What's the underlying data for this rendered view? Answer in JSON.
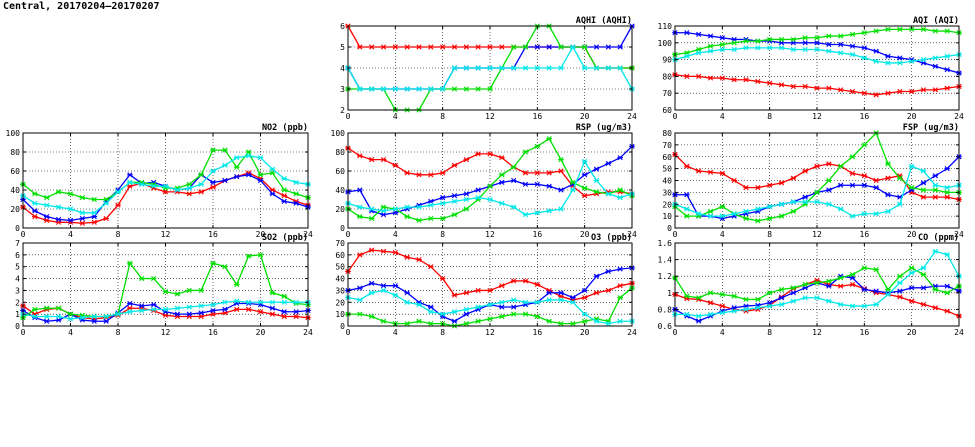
{
  "page": {
    "title": "Central, 20170204–20170207"
  },
  "chart_data": [
    {
      "id": "aqhi",
      "type": "line",
      "title": "AQHI (AQHI)",
      "xlim": [
        0,
        24
      ],
      "ylim": [
        2,
        6
      ],
      "xticks": [
        0,
        4,
        8,
        12,
        16,
        20,
        24
      ],
      "yticks": [
        2,
        3,
        4,
        5,
        6
      ],
      "grid": true,
      "series": [
        {
          "color": "#ff0000",
          "values": [
            6,
            5,
            5,
            5,
            5,
            5,
            5,
            5,
            5,
            5,
            5,
            5,
            5,
            5,
            5,
            5,
            5,
            5,
            5,
            5,
            5,
            4,
            4,
            4,
            4
          ]
        },
        {
          "color": "#0000ff",
          "values": [
            4,
            3,
            3,
            3,
            3,
            3,
            3,
            3,
            3,
            4,
            4,
            4,
            4,
            4,
            4,
            5,
            5,
            5,
            5,
            5,
            5,
            5,
            5,
            5,
            6
          ]
        },
        {
          "color": "#00e000",
          "values": [
            3,
            3,
            3,
            3,
            2,
            2,
            2,
            3,
            3,
            3,
            3,
            3,
            3,
            4,
            5,
            5,
            6,
            6,
            5,
            5,
            5,
            4,
            4,
            4,
            4
          ]
        },
        {
          "color": "#00e8e8",
          "values": [
            4,
            3,
            3,
            3,
            3,
            3,
            3,
            3,
            3,
            4,
            4,
            4,
            4,
            4,
            4,
            4,
            4,
            4,
            4,
            5,
            4,
            4,
            4,
            4,
            3
          ]
        }
      ]
    },
    {
      "id": "aqi",
      "type": "line",
      "title": "AQI (AQI)",
      "xlim": [
        0,
        24
      ],
      "ylim": [
        60,
        110
      ],
      "xticks": [
        0,
        4,
        8,
        12,
        16,
        20,
        24
      ],
      "yticks": [
        60,
        70,
        80,
        90,
        100,
        110
      ],
      "grid": true,
      "series": [
        {
          "color": "#ff0000",
          "values": [
            81,
            80,
            80,
            79,
            79,
            78,
            78,
            77,
            76,
            75,
            74,
            74,
            73,
            73,
            72,
            71,
            70,
            69,
            70,
            71,
            71,
            72,
            72,
            73,
            74
          ]
        },
        {
          "color": "#0000ff",
          "values": [
            106,
            106,
            105,
            104,
            103,
            102,
            102,
            101,
            101,
            100,
            100,
            100,
            100,
            99,
            99,
            98,
            97,
            95,
            92,
            91,
            90,
            88,
            86,
            84,
            82
          ]
        },
        {
          "color": "#00e000",
          "values": [
            93,
            94,
            96,
            98,
            99,
            100,
            101,
            101,
            102,
            102,
            102,
            103,
            103,
            104,
            104,
            105,
            106,
            107,
            108,
            108,
            108,
            108,
            107,
            107,
            106
          ]
        },
        {
          "color": "#00e8e8",
          "values": [
            90,
            92,
            94,
            95,
            96,
            96,
            97,
            97,
            97,
            97,
            96,
            96,
            96,
            95,
            94,
            93,
            91,
            89,
            88,
            88,
            89,
            90,
            91,
            92,
            93
          ]
        }
      ]
    },
    {
      "id": "no2",
      "type": "line",
      "title": "NO2 (ppb)",
      "xlim": [
        0,
        24
      ],
      "ylim": [
        0,
        100
      ],
      "xticks": [
        0,
        4,
        8,
        12,
        16,
        20,
        24
      ],
      "yticks": [
        0,
        20,
        40,
        60,
        80,
        100
      ],
      "grid": true,
      "series": [
        {
          "color": "#ff0000",
          "values": [
            22,
            12,
            8,
            6,
            6,
            5,
            6,
            10,
            24,
            44,
            47,
            42,
            38,
            38,
            36,
            38,
            43,
            50,
            54,
            58,
            52,
            40,
            34,
            28,
            24
          ]
        },
        {
          "color": "#0000ff",
          "values": [
            30,
            18,
            12,
            9,
            8,
            10,
            12,
            28,
            40,
            56,
            47,
            48,
            44,
            40,
            42,
            56,
            48,
            50,
            54,
            56,
            50,
            36,
            28,
            26,
            22
          ]
        },
        {
          "color": "#00e000",
          "values": [
            46,
            36,
            32,
            38,
            36,
            32,
            30,
            30,
            38,
            48,
            48,
            46,
            42,
            42,
            46,
            56,
            82,
            82,
            64,
            80,
            56,
            58,
            40,
            36,
            32
          ]
        },
        {
          "color": "#00e8e8",
          "values": [
            34,
            26,
            24,
            22,
            20,
            16,
            16,
            26,
            38,
            48,
            46,
            44,
            44,
            40,
            42,
            46,
            60,
            66,
            74,
            76,
            74,
            62,
            52,
            48,
            46
          ]
        }
      ]
    },
    {
      "id": "rsp",
      "type": "line",
      "title": "RSP (ug/m3)",
      "xlim": [
        0,
        24
      ],
      "ylim": [
        0,
        100
      ],
      "xticks": [
        0,
        4,
        8,
        12,
        16,
        20,
        24
      ],
      "yticks": [
        0,
        20,
        40,
        60,
        80,
        100
      ],
      "grid": true,
      "series": [
        {
          "color": "#ff0000",
          "values": [
            84,
            76,
            72,
            72,
            66,
            58,
            56,
            56,
            58,
            66,
            72,
            78,
            78,
            74,
            64,
            58,
            58,
            58,
            60,
            44,
            34,
            36,
            38,
            38,
            36
          ]
        },
        {
          "color": "#0000ff",
          "values": [
            38,
            40,
            18,
            14,
            16,
            20,
            24,
            28,
            32,
            34,
            36,
            40,
            44,
            48,
            50,
            46,
            46,
            44,
            40,
            46,
            56,
            62,
            68,
            74,
            86
          ]
        },
        {
          "color": "#00e000",
          "values": [
            20,
            12,
            10,
            22,
            20,
            12,
            8,
            10,
            10,
            14,
            20,
            30,
            44,
            56,
            64,
            80,
            86,
            94,
            72,
            48,
            42,
            38,
            36,
            40,
            34
          ]
        },
        {
          "color": "#00e8e8",
          "values": [
            26,
            22,
            20,
            18,
            20,
            22,
            22,
            24,
            26,
            28,
            30,
            32,
            30,
            26,
            22,
            14,
            16,
            18,
            20,
            40,
            70,
            50,
            36,
            32,
            36
          ]
        }
      ]
    },
    {
      "id": "fsp",
      "type": "line",
      "title": "FSP (ug/m3)",
      "xlim": [
        0,
        24
      ],
      "ylim": [
        0,
        80
      ],
      "xticks": [
        0,
        4,
        8,
        12,
        16,
        20,
        24
      ],
      "yticks": [
        0,
        10,
        20,
        30,
        40,
        50,
        60,
        70,
        80
      ],
      "grid": true,
      "series": [
        {
          "color": "#ff0000",
          "values": [
            62,
            52,
            48,
            47,
            46,
            40,
            34,
            34,
            36,
            38,
            42,
            48,
            52,
            54,
            52,
            46,
            44,
            40,
            42,
            44,
            30,
            26,
            26,
            26,
            24
          ]
        },
        {
          "color": "#0000ff",
          "values": [
            28,
            28,
            10,
            10,
            8,
            10,
            12,
            14,
            18,
            20,
            22,
            26,
            30,
            32,
            36,
            36,
            36,
            34,
            28,
            26,
            32,
            38,
            44,
            50,
            60
          ]
        },
        {
          "color": "#00e000",
          "values": [
            18,
            10,
            10,
            14,
            18,
            12,
            8,
            6,
            8,
            10,
            14,
            20,
            30,
            40,
            52,
            60,
            70,
            80,
            54,
            42,
            34,
            32,
            32,
            30,
            30
          ]
        },
        {
          "color": "#00e8e8",
          "values": [
            20,
            16,
            12,
            10,
            10,
            12,
            14,
            16,
            18,
            20,
            22,
            22,
            22,
            20,
            16,
            10,
            12,
            12,
            14,
            20,
            52,
            48,
            36,
            34,
            36
          ]
        }
      ]
    },
    {
      "id": "so2",
      "type": "line",
      "title": "SO2 (ppb)",
      "xlim": [
        0,
        24
      ],
      "ylim": [
        0,
        7
      ],
      "xticks": [
        0,
        4,
        8,
        12,
        16,
        20,
        24
      ],
      "yticks": [
        0,
        1,
        2,
        3,
        4,
        5,
        6,
        7
      ],
      "grid": true,
      "series": [
        {
          "color": "#ff0000",
          "values": [
            1.7,
            1.0,
            1.4,
            1.5,
            1.0,
            0.7,
            0.6,
            0.7,
            0.9,
            1.5,
            1.5,
            1.3,
            0.9,
            0.8,
            0.8,
            0.8,
            1.0,
            1.1,
            1.4,
            1.4,
            1.2,
            1.0,
            0.8,
            0.8,
            0.7
          ]
        },
        {
          "color": "#0000ff",
          "values": [
            1.3,
            0.7,
            0.4,
            0.5,
            1.0,
            0.5,
            0.4,
            0.4,
            1.1,
            1.9,
            1.7,
            1.8,
            1.2,
            1.0,
            1.0,
            1.1,
            1.3,
            1.4,
            1.9,
            1.9,
            1.8,
            1.5,
            1.2,
            1.2,
            1.3
          ]
        },
        {
          "color": "#00e000",
          "values": [
            0.7,
            1.4,
            1.5,
            1.5,
            1.0,
            0.9,
            0.8,
            0.8,
            1.0,
            5.3,
            4.0,
            4.0,
            2.9,
            2.7,
            3.0,
            3.0,
            5.3,
            5.0,
            3.5,
            5.9,
            6.0,
            2.8,
            2.5,
            1.9,
            1.8
          ]
        },
        {
          "color": "#00e8e8",
          "values": [
            1.0,
            0.8,
            0.8,
            0.8,
            0.6,
            0.7,
            0.8,
            0.8,
            1.0,
            1.2,
            1.3,
            1.4,
            1.4,
            1.5,
            1.6,
            1.7,
            1.8,
            2.0,
            2.1,
            2.0,
            2.0,
            2.0,
            2.0,
            2.0,
            2.0
          ]
        }
      ]
    },
    {
      "id": "o3",
      "type": "line",
      "title": "O3 (ppb)",
      "xlim": [
        0,
        24
      ],
      "ylim": [
        0,
        70
      ],
      "xticks": [
        0,
        4,
        8,
        12,
        16,
        20,
        24
      ],
      "yticks": [
        0,
        10,
        20,
        30,
        40,
        50,
        60,
        70
      ],
      "grid": true,
      "series": [
        {
          "color": "#ff0000",
          "values": [
            46,
            60,
            64,
            63,
            62,
            58,
            56,
            50,
            40,
            26,
            28,
            30,
            30,
            34,
            38,
            38,
            35,
            30,
            25,
            22,
            24,
            28,
            30,
            34,
            36
          ]
        },
        {
          "color": "#0000ff",
          "values": [
            30,
            32,
            36,
            34,
            34,
            28,
            20,
            16,
            8,
            4,
            10,
            14,
            18,
            16,
            16,
            18,
            20,
            28,
            28,
            24,
            30,
            42,
            46,
            48,
            49
          ]
        },
        {
          "color": "#00e000",
          "values": [
            10,
            10,
            8,
            4,
            2,
            2,
            4,
            2,
            2,
            0,
            2,
            4,
            6,
            8,
            10,
            10,
            8,
            4,
            2,
            2,
            4,
            6,
            4,
            24,
            32
          ]
        },
        {
          "color": "#00e8e8",
          "values": [
            24,
            22,
            28,
            30,
            26,
            20,
            18,
            12,
            10,
            12,
            14,
            16,
            18,
            20,
            22,
            20,
            20,
            22,
            22,
            20,
            10,
            4,
            2,
            4,
            4
          ]
        }
      ]
    },
    {
      "id": "co",
      "type": "line",
      "title": "CO (ppm)",
      "xlim": [
        0,
        24
      ],
      "ylim": [
        0.6,
        1.6
      ],
      "xticks": [
        0,
        4,
        8,
        12,
        16,
        20,
        24
      ],
      "yticks": [
        0.6,
        0.8,
        1.0,
        1.2,
        1.4,
        1.6
      ],
      "grid": true,
      "series": [
        {
          "color": "#ff0000",
          "values": [
            0.98,
            0.93,
            0.92,
            0.88,
            0.84,
            0.8,
            0.78,
            0.8,
            0.85,
            0.95,
            1.05,
            1.1,
            1.15,
            1.1,
            1.08,
            1.1,
            1.05,
            1.0,
            0.98,
            0.95,
            0.9,
            0.86,
            0.82,
            0.78,
            0.72
          ]
        },
        {
          "color": "#0000ff",
          "values": [
            0.8,
            0.72,
            0.66,
            0.72,
            0.78,
            0.82,
            0.84,
            0.85,
            0.88,
            0.94,
            1.0,
            1.06,
            1.12,
            1.08,
            1.2,
            1.18,
            1.04,
            1.02,
            1.0,
            1.02,
            1.06,
            1.06,
            1.08,
            1.08,
            1.02
          ]
        },
        {
          "color": "#00e000",
          "values": [
            1.18,
            0.96,
            0.94,
            1.0,
            0.98,
            0.96,
            0.92,
            0.92,
            1.0,
            1.04,
            1.06,
            1.1,
            1.12,
            1.14,
            1.18,
            1.22,
            1.3,
            1.28,
            1.04,
            1.2,
            1.3,
            1.22,
            1.04,
            1.0,
            1.08
          ]
        },
        {
          "color": "#00e8e8",
          "values": [
            0.74,
            0.74,
            0.72,
            0.74,
            0.76,
            0.78,
            0.8,
            0.82,
            0.84,
            0.86,
            0.9,
            0.94,
            0.94,
            0.9,
            0.86,
            0.84,
            0.84,
            0.86,
            0.98,
            1.12,
            1.24,
            1.3,
            1.5,
            1.46,
            1.2
          ]
        }
      ]
    }
  ]
}
